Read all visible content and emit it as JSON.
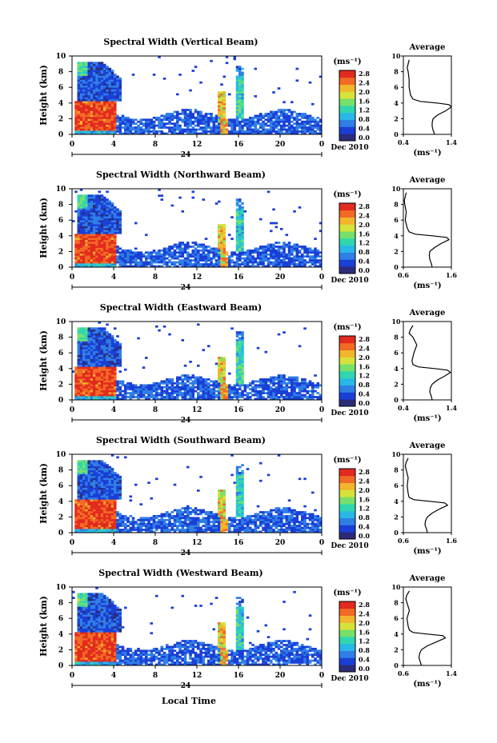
{
  "figure": {
    "shared_xlabel": "Local Time",
    "colorbar_unit": "(ms⁻¹)",
    "colorbar_ticks": [
      "0.0",
      "0.4",
      "0.8",
      "1.2",
      "1.6",
      "2.0",
      "2.4",
      "2.8"
    ],
    "colorbar_colors": [
      "#2b2b7a",
      "#1a3fd6",
      "#2f7fe6",
      "#28b7e6",
      "#2fd6b0",
      "#76e06a",
      "#d6e23a",
      "#f2b52c",
      "#f26a24",
      "#e22a1e"
    ]
  },
  "chart_data": [
    {
      "type": "heatmap",
      "title": "Spectral Width (Vertical Beam)",
      "xlabel": "",
      "ylabel": "Height (km)",
      "xlim": [
        0,
        24
      ],
      "ylim": [
        0,
        10
      ],
      "xticks": [
        "0",
        "4",
        "8",
        "12",
        "16",
        "20",
        "0"
      ],
      "yticks": [
        "0",
        "2",
        "4",
        "6",
        "8",
        "10"
      ],
      "date_label": "Dec 2010",
      "day_marker": "24",
      "colorbar": {
        "label": "(ms⁻¹)",
        "range": [
          0.0,
          2.8
        ]
      },
      "average_profile": {
        "title": "Average",
        "xlabel": "(ms⁻¹)",
        "xlim": [
          0.4,
          1.4
        ],
        "xticks": [
          "0.4",
          "1.4"
        ],
        "height": [
          0,
          0.5,
          1,
          1.5,
          2,
          2.5,
          3,
          3.5,
          3.8,
          4,
          4.2,
          4.5,
          5,
          6,
          7,
          8,
          8.5,
          9,
          9.5
        ],
        "width": [
          1.05,
          1.02,
          1.0,
          1.0,
          1.02,
          1.12,
          1.28,
          1.4,
          1.35,
          1.1,
          0.75,
          0.6,
          0.55,
          0.52,
          0.52,
          0.5,
          0.48,
          0.5,
          0.52
        ]
      }
    },
    {
      "type": "heatmap",
      "title": "Spectral Width (Northward Beam)",
      "xlabel": "",
      "ylabel": "Height (km)",
      "xlim": [
        0,
        24
      ],
      "ylim": [
        0,
        10
      ],
      "xticks": [
        "0",
        "4",
        "8",
        "12",
        "16",
        "20",
        "0"
      ],
      "yticks": [
        "0",
        "2",
        "4",
        "6",
        "8",
        "10"
      ],
      "date_label": "Dec 2010",
      "day_marker": "24",
      "colorbar": {
        "label": "(ms⁻¹)",
        "range": [
          0.0,
          2.8
        ]
      },
      "average_profile": {
        "title": "Average",
        "xlabel": "(ms⁻¹)",
        "xlim": [
          0.6,
          1.6
        ],
        "xticks": [
          "0.6",
          "1.6"
        ],
        "height": [
          0,
          0.5,
          1,
          1.5,
          2,
          2.5,
          3,
          3.5,
          3.8,
          4,
          4.2,
          4.5,
          5,
          6,
          7,
          8,
          8.5,
          9,
          9.5
        ],
        "width": [
          1.2,
          1.18,
          1.15,
          1.14,
          1.15,
          1.25,
          1.38,
          1.55,
          1.5,
          1.2,
          0.85,
          0.72,
          0.68,
          0.64,
          0.66,
          0.63,
          0.62,
          0.64,
          0.66
        ]
      }
    },
    {
      "type": "heatmap",
      "title": "Spectral Width (Eastward Beam)",
      "xlabel": "",
      "ylabel": "Height (km)",
      "xlim": [
        0,
        24
      ],
      "ylim": [
        0,
        10
      ],
      "xticks": [
        "0",
        "4",
        "8",
        "12",
        "16",
        "20",
        "0"
      ],
      "yticks": [
        "0",
        "2",
        "4",
        "6",
        "8",
        "10"
      ],
      "date_label": "Dec 2010",
      "day_marker": "24",
      "colorbar": {
        "label": "(ms⁻¹)",
        "range": [
          0.0,
          2.8
        ]
      },
      "average_profile": {
        "title": "Average",
        "xlabel": "(ms⁻¹)",
        "xlim": [
          0.4,
          1.4
        ],
        "xticks": [
          "0.4",
          "1.4"
        ],
        "height": [
          0,
          0.5,
          1,
          1.5,
          2,
          2.5,
          3,
          3.5,
          3.8,
          4,
          4.2,
          4.5,
          5,
          6,
          7,
          8,
          8.5,
          9,
          9.5
        ],
        "width": [
          1.0,
          0.98,
          0.95,
          0.96,
          1.0,
          1.1,
          1.25,
          1.38,
          1.32,
          1.05,
          0.72,
          0.6,
          0.58,
          0.62,
          0.68,
          0.6,
          0.52,
          0.55,
          0.6
        ]
      }
    },
    {
      "type": "heatmap",
      "title": "Spectral Width (Southward Beam)",
      "xlabel": "",
      "ylabel": "Height (km)",
      "xlim": [
        0,
        24
      ],
      "ylim": [
        0,
        10
      ],
      "xticks": [
        "0",
        "4",
        "8",
        "12",
        "16",
        "20",
        "0"
      ],
      "yticks": [
        "0",
        "2",
        "4",
        "6",
        "8",
        "10"
      ],
      "date_label": "Dec 2010",
      "day_marker": "24",
      "colorbar": {
        "label": "(ms⁻¹)",
        "range": [
          0.0,
          2.8
        ]
      },
      "average_profile": {
        "title": "Average",
        "xlabel": "(ms⁻¹)",
        "xlim": [
          0.6,
          1.6
        ],
        "xticks": [
          "0.6",
          "1.6"
        ],
        "height": [
          0,
          0.5,
          1,
          1.5,
          2,
          2.5,
          3,
          3.5,
          3.8,
          4,
          4.2,
          4.5,
          5,
          6,
          7,
          8,
          8.5,
          9,
          9.5
        ],
        "width": [
          1.1,
          1.08,
          1.05,
          1.06,
          1.1,
          1.2,
          1.35,
          1.52,
          1.46,
          1.15,
          0.82,
          0.72,
          0.7,
          0.68,
          0.7,
          0.66,
          0.64,
          0.66,
          0.7
        ]
      }
    },
    {
      "type": "heatmap",
      "title": "Spectral Width (Westward Beam)",
      "xlabel": "",
      "ylabel": "Height (km)",
      "xlim": [
        0,
        24
      ],
      "ylim": [
        0,
        10
      ],
      "xticks": [
        "0",
        "4",
        "8",
        "12",
        "16",
        "20",
        "0"
      ],
      "yticks": [
        "0",
        "2",
        "4",
        "6",
        "8",
        "10"
      ],
      "date_label": "Dec 2010",
      "day_marker": "24",
      "colorbar": {
        "label": "(ms⁻¹)",
        "range": [
          0.0,
          2.8
        ]
      },
      "average_profile": {
        "title": "Average",
        "xlabel": "(ms⁻¹)",
        "xlim": [
          0.6,
          1.4
        ],
        "xticks": [
          "0.6",
          "1.4"
        ],
        "height": [
          0,
          0.5,
          1,
          1.5,
          2,
          2.5,
          3,
          3.5,
          3.8,
          4,
          4.2,
          4.5,
          5,
          6,
          7,
          8,
          8.5,
          9,
          9.5
        ],
        "width": [
          0.9,
          0.88,
          0.86,
          0.87,
          0.9,
          1.0,
          1.15,
          1.3,
          1.26,
          1.0,
          0.76,
          0.7,
          0.68,
          0.66,
          0.7,
          0.66,
          0.64,
          0.66,
          0.7
        ]
      }
    }
  ]
}
